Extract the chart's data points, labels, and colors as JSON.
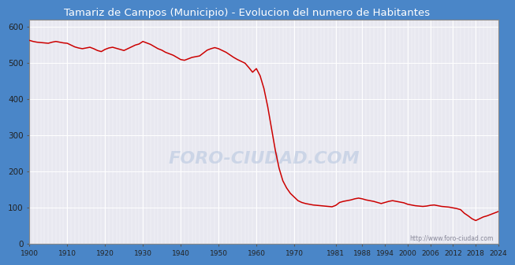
{
  "title": "Tamariz de Campos (Municipio) - Evolucion del numero de Habitantes",
  "title_color": "#ffffff",
  "title_bg_color": "#4a86c8",
  "outer_bg_color": "#4a86c8",
  "line_color": "#cc0000",
  "plot_bg_color": "#e8e8f0",
  "grid_color": "#ffffff",
  "watermark_text": "http://www.foro-ciudad.com",
  "foro_text": "FORO-CIUDAD.COM",
  "years": [
    1900,
    1901,
    1902,
    1903,
    1904,
    1905,
    1906,
    1907,
    1908,
    1909,
    1910,
    1911,
    1912,
    1913,
    1914,
    1915,
    1916,
    1917,
    1918,
    1919,
    1920,
    1921,
    1922,
    1923,
    1924,
    1925,
    1926,
    1927,
    1928,
    1929,
    1930,
    1931,
    1932,
    1933,
    1934,
    1935,
    1936,
    1937,
    1938,
    1939,
    1940,
    1941,
    1942,
    1943,
    1944,
    1945,
    1946,
    1947,
    1948,
    1949,
    1950,
    1951,
    1952,
    1953,
    1954,
    1955,
    1956,
    1957,
    1958,
    1959,
    1960,
    1961,
    1962,
    1963,
    1964,
    1965,
    1966,
    1967,
    1968,
    1969,
    1970,
    1971,
    1972,
    1973,
    1974,
    1975,
    1976,
    1977,
    1978,
    1979,
    1980,
    1981,
    1982,
    1983,
    1984,
    1985,
    1986,
    1987,
    1988,
    1989,
    1990,
    1991,
    1992,
    1993,
    1994,
    1995,
    1996,
    1997,
    1998,
    1999,
    2000,
    2001,
    2002,
    2003,
    2004,
    2005,
    2006,
    2007,
    2008,
    2009,
    2010,
    2011,
    2012,
    2013,
    2014,
    2015,
    2016,
    2017,
    2018,
    2019,
    2020,
    2021,
    2022,
    2023,
    2024
  ],
  "population": [
    563,
    560,
    558,
    557,
    556,
    555,
    558,
    560,
    558,
    556,
    555,
    550,
    545,
    542,
    540,
    542,
    544,
    540,
    535,
    532,
    538,
    542,
    544,
    541,
    538,
    535,
    540,
    545,
    550,
    553,
    560,
    556,
    552,
    546,
    540,
    536,
    530,
    526,
    522,
    516,
    510,
    508,
    512,
    516,
    518,
    520,
    528,
    536,
    540,
    543,
    540,
    535,
    530,
    523,
    516,
    510,
    505,
    500,
    488,
    475,
    485,
    465,
    430,
    380,
    320,
    260,
    210,
    175,
    155,
    140,
    130,
    120,
    115,
    112,
    110,
    108,
    107,
    106,
    105,
    104,
    103,
    107,
    115,
    118,
    120,
    122,
    125,
    127,
    125,
    122,
    120,
    118,
    115,
    112,
    115,
    118,
    120,
    118,
    116,
    114,
    110,
    108,
    106,
    105,
    104,
    105,
    107,
    108,
    106,
    104,
    103,
    102,
    100,
    98,
    95,
    85,
    78,
    70,
    65,
    70,
    75,
    78,
    82,
    86,
    90
  ],
  "xtick_labels": [
    "1900",
    "1910",
    "1920",
    "1930",
    "1940",
    "1950",
    "1960",
    "1970",
    "1981",
    "1988",
    "1994",
    "2000",
    "2006",
    "2012",
    "2018",
    "2024"
  ],
  "xtick_positions": [
    1900,
    1910,
    1920,
    1930,
    1940,
    1950,
    1960,
    1970,
    1981,
    1988,
    1994,
    2000,
    2006,
    2012,
    2018,
    2024
  ],
  "ytick_labels": [
    "0",
    "100",
    "200",
    "300",
    "400",
    "500",
    "600"
  ],
  "ytick_positions": [
    0,
    100,
    200,
    300,
    400,
    500,
    600
  ],
  "ylim": [
    0,
    620
  ],
  "xlim": [
    1900,
    2024
  ]
}
